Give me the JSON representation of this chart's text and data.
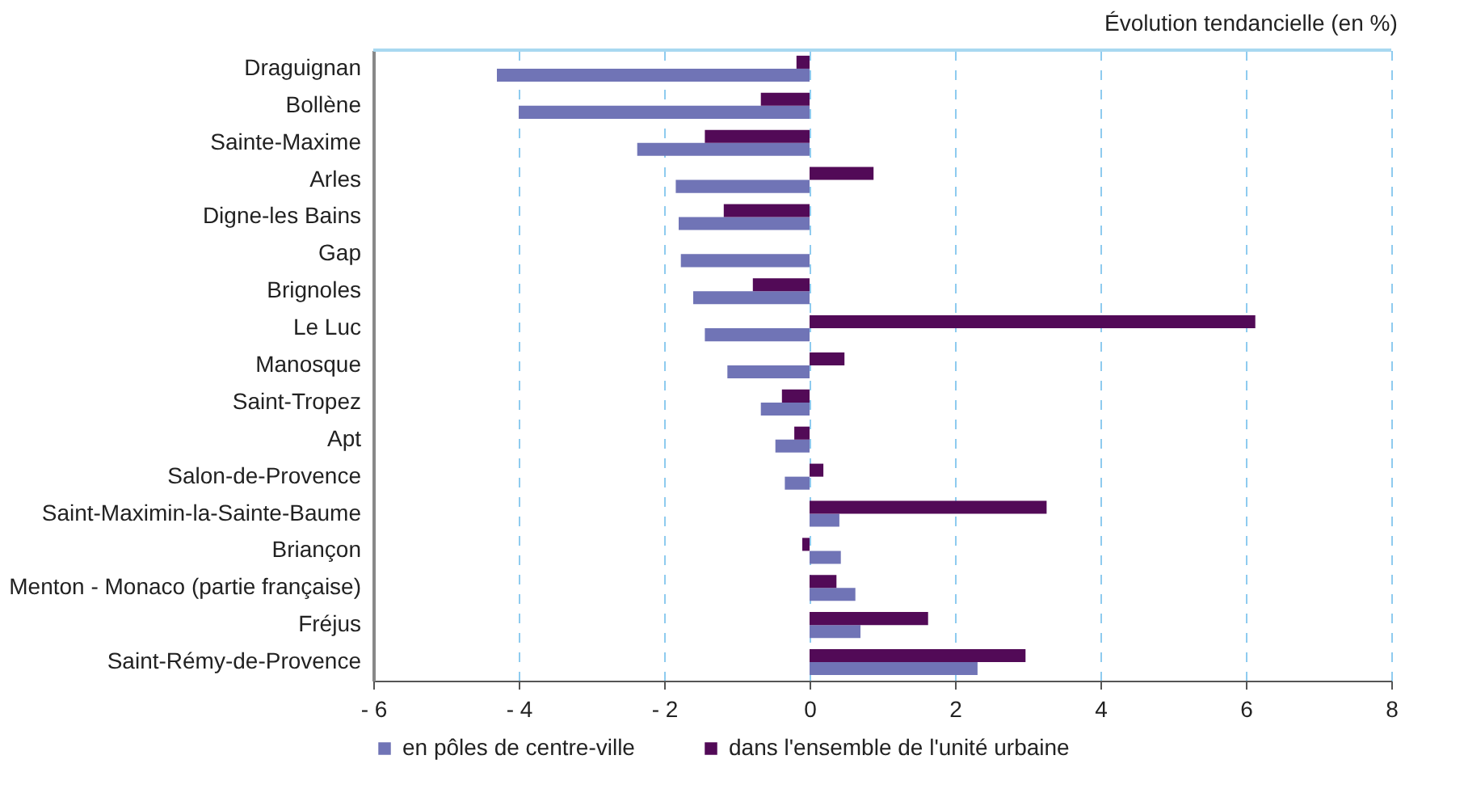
{
  "chart_data": {
    "type": "bar",
    "orientation": "horizontal",
    "title": "Évolution tendancielle (en %)",
    "categories": [
      "Draguignan",
      "Bollène",
      "Sainte-Maxime",
      "Arles",
      "Digne-les Bains",
      "Gap",
      "Brignoles",
      "Le Luc",
      "Manosque",
      "Saint-Tropez",
      "Apt",
      "Salon-de-Provence",
      "Saint-Maximin-la-Sainte-Baume",
      "Briançon",
      "Menton - Monaco (partie française)",
      "Fréjus",
      "Saint-Rémy-de-Provence"
    ],
    "series": [
      {
        "name": "en pôles de centre-ville",
        "color": "#7074b6",
        "values": [
          -4.3,
          -4.0,
          -2.37,
          -1.84,
          -1.8,
          -1.77,
          -1.6,
          -1.44,
          -1.13,
          -0.67,
          -0.47,
          -0.34,
          0.41,
          0.43,
          0.63,
          0.7,
          2.31
        ]
      },
      {
        "name": "dans l'ensemble de l'unité urbaine",
        "color": "#520a57",
        "values": [
          -0.18,
          -0.67,
          -1.44,
          0.88,
          -1.18,
          0,
          -0.78,
          6.13,
          0.48,
          -0.38,
          -0.21,
          0.19,
          3.26,
          -0.1,
          0.37,
          1.63,
          2.97
        ]
      }
    ],
    "xlim": [
      -6,
      8
    ],
    "xticks": [
      {
        "value": -6,
        "label": "- 6"
      },
      {
        "value": -4,
        "label": "- 4"
      },
      {
        "value": -2,
        "label": "- 2"
      },
      0,
      2,
      4,
      6,
      8
    ],
    "grid": "x",
    "legend": "bottom"
  }
}
